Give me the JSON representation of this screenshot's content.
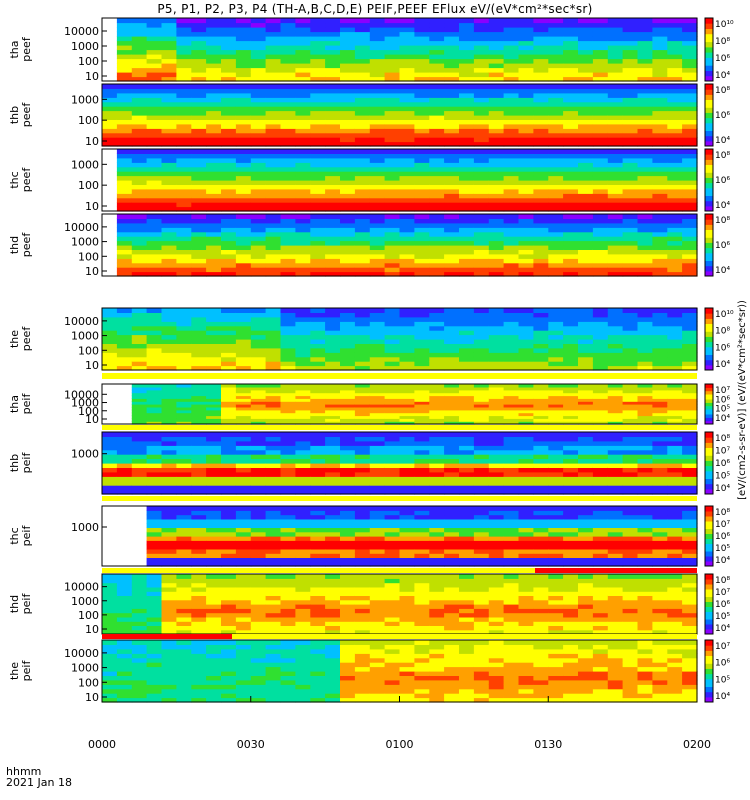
{
  "title": "P5, P1, P2, P3, P4 (TH-A,B,C,D,E) PEIF,PEEF EFlux eV/(eV*cm²*sec*sr)",
  "x_axis": {
    "ticks": [
      "0000",
      "0030",
      "0100",
      "0130",
      "0200"
    ],
    "label_top": "hhmm",
    "label_bottom": "2021 Jan 18"
  },
  "colorbar_label": "[eV/(cm2-s-sr-eV)] (eV/(eV*cm²*sec*sr))",
  "panels": [
    {
      "probe": "tha",
      "product": "peef"
    },
    {
      "probe": "thb",
      "product": "peef"
    },
    {
      "probe": "thc",
      "product": "peef"
    },
    {
      "probe": "thd",
      "product": "peef"
    },
    {
      "probe": "the",
      "product": "peef"
    },
    {
      "probe": "tha",
      "product": "peif"
    },
    {
      "probe": "thb",
      "product": "peif"
    },
    {
      "probe": "thc",
      "product": "peif"
    },
    {
      "probe": "thd",
      "product": "peif"
    },
    {
      "probe": "the",
      "product": "peif"
    }
  ],
  "chart_data": {
    "type": "heatmap",
    "time_range": [
      "0000",
      "0200"
    ],
    "colorscale": [
      "#8b00ff",
      "#3020ff",
      "#0070ff",
      "#00c0ff",
      "#00e0a0",
      "#30e030",
      "#c0e000",
      "#ffff00",
      "#ffa000",
      "#ff4000",
      "#ff0000"
    ],
    "panels": [
      {
        "name": "tha peef",
        "y_scale": "log",
        "y_ticks": [
          "10",
          "100",
          "1000",
          "10000"
        ],
        "cb_ticks": [
          "10⁴",
          "10⁶",
          "10⁸",
          "10¹⁰"
        ]
      },
      {
        "name": "thb peef",
        "y_scale": "log",
        "y_ticks": [
          "10",
          "100",
          "1000"
        ],
        "cb_ticks": [
          "10⁴",
          "10⁶",
          "10⁸"
        ]
      },
      {
        "name": "thc peef",
        "y_scale": "log",
        "y_ticks": [
          "10",
          "100",
          "1000"
        ],
        "cb_ticks": [
          "10⁴",
          "10⁶",
          "10⁸"
        ]
      },
      {
        "name": "thd peef",
        "y_scale": "log",
        "y_ticks": [
          "10",
          "100",
          "1000",
          "10000"
        ],
        "cb_ticks": [
          "10⁴",
          "10⁶",
          "10⁸"
        ]
      },
      {
        "name": "the peef",
        "y_scale": "log",
        "y_ticks": [
          "10",
          "100",
          "1000",
          "10000"
        ],
        "cb_ticks": [
          "10⁴",
          "10⁶",
          "10⁸",
          "10¹⁰"
        ]
      },
      {
        "name": "tha peif",
        "y_scale": "log",
        "y_ticks": [
          "10",
          "100",
          "1000",
          "10000"
        ],
        "cb_ticks": [
          "10⁴",
          "10⁵",
          "10⁶",
          "10⁷"
        ]
      },
      {
        "name": "thb peif",
        "y_scale": "log",
        "y_ticks": [
          "1000"
        ],
        "cb_ticks": [
          "10⁴",
          "10⁵",
          "10⁶",
          "10⁷",
          "10⁸"
        ]
      },
      {
        "name": "thc peif",
        "y_scale": "log",
        "y_ticks": [
          "1000"
        ],
        "cb_ticks": [
          "10⁴",
          "10⁵",
          "10⁶",
          "10⁷",
          "10⁸"
        ]
      },
      {
        "name": "thd peif",
        "y_scale": "log",
        "y_ticks": [
          "10",
          "100",
          "1000",
          "10000"
        ],
        "cb_ticks": [
          "10⁴",
          "10⁵",
          "10⁶",
          "10⁷",
          "10⁸"
        ]
      },
      {
        "name": "the peif",
        "y_scale": "log",
        "y_ticks": [
          "10",
          "100",
          "1000",
          "10000"
        ],
        "cb_ticks": [
          "10⁴",
          "10⁵",
          "10⁶",
          "10⁷"
        ]
      }
    ]
  }
}
